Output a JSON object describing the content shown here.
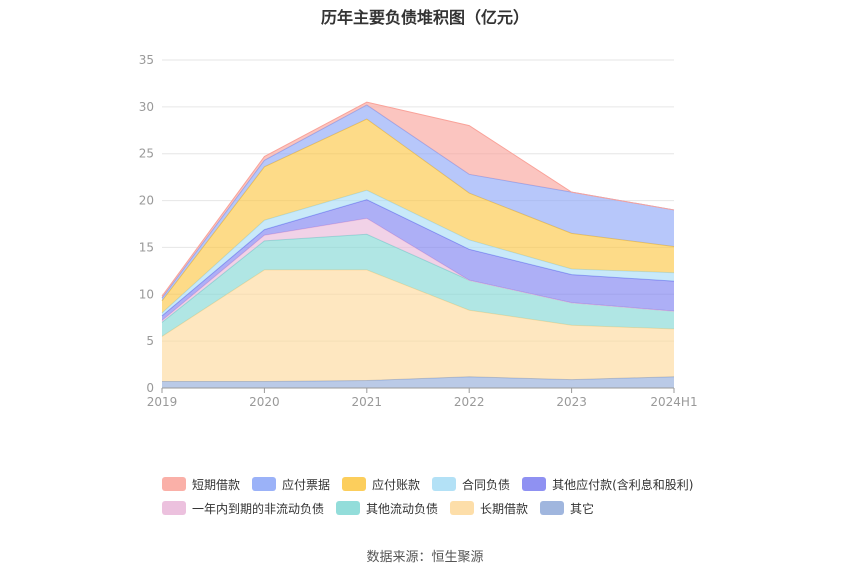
{
  "title": "历年主要负债堆积图（亿元）",
  "source": "数据来源：恒生聚源",
  "chart_data": {
    "type": "area",
    "stacked": true,
    "categories": [
      "2019",
      "2020",
      "2021",
      "2022",
      "2023",
      "2024H1"
    ],
    "ylim": [
      0,
      35
    ],
    "yticks": [
      0,
      5,
      10,
      15,
      20,
      25,
      30,
      35
    ],
    "series": [
      {
        "name": "其它",
        "color": "#8fa9d8",
        "values": [
          0.7,
          0.7,
          0.8,
          1.2,
          0.9,
          1.2
        ]
      },
      {
        "name": "长期借款",
        "color": "#fdd89a",
        "values": [
          4.8,
          11.9,
          11.8,
          7.1,
          5.8,
          5.1
        ]
      },
      {
        "name": "其他流动负债",
        "color": "#80d7d3",
        "values": [
          1.5,
          3.1,
          3.8,
          3.2,
          2.4,
          1.9
        ]
      },
      {
        "name": "一年内到期的非流动负债",
        "color": "#e9b6d8",
        "values": [
          0.2,
          0.6,
          1.7,
          0.0,
          0.0,
          0.0
        ]
      },
      {
        "name": "其他应付款(含利息和股利)",
        "color": "#7b7ef0",
        "values": [
          0.5,
          0.6,
          2.0,
          3.3,
          3.0,
          3.2
        ]
      },
      {
        "name": "合同负债",
        "color": "#a6dcf5",
        "values": [
          0.3,
          1.0,
          1.0,
          1.0,
          0.6,
          0.9
        ]
      },
      {
        "name": "应付账款",
        "color": "#fcc53f",
        "values": [
          1.3,
          5.7,
          7.6,
          5.0,
          3.8,
          2.8
        ]
      },
      {
        "name": "应付票据",
        "color": "#8aa5f7",
        "values": [
          0.3,
          0.7,
          1.5,
          2.0,
          4.4,
          3.9
        ]
      },
      {
        "name": "短期借款",
        "color": "#f9a299",
        "values": [
          0.2,
          0.4,
          0.3,
          5.2,
          0.0,
          0.0
        ]
      }
    ]
  },
  "legend": {
    "row1": [
      "短期借款",
      "应付票据",
      "应付账款",
      "合同负债",
      "其他应付款(含利息和股利)"
    ],
    "row2": [
      "一年内到期的非流动负债",
      "其他流动负债",
      "长期借款",
      "其它"
    ]
  },
  "legend_colors": {
    "短期借款": "#f9a299",
    "应付票据": "#8aa5f7",
    "应付账款": "#fcc53f",
    "合同负债": "#a6dcf5",
    "其他应付款(含利息和股利)": "#7b7ef0",
    "一年内到期的非流动负债": "#e9b6d8",
    "其他流动负债": "#80d7d3",
    "长期借款": "#fdd89a",
    "其它": "#8fa9d8"
  }
}
